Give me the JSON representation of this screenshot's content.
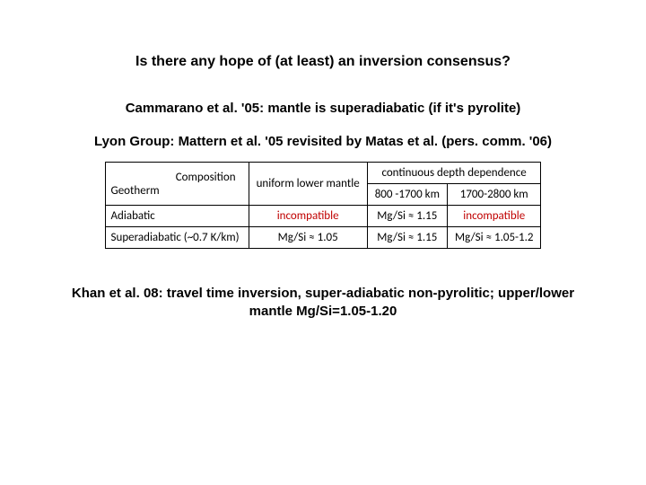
{
  "title": "Is there any hope of (at least) an inversion consensus?",
  "line1": "Cammarano et al. '05: mantle is superadiabatic (if it's pyrolite)",
  "line2": "Lyon Group: Mattern et al. '05 revisited by Matas et al. (pers. comm. '06)",
  "table": {
    "header": {
      "corner_top": "Composition",
      "corner_bottom": "Geotherm",
      "uniform": "uniform lower mantle",
      "continuous": "continuous depth dependence",
      "col_800": "800 -1700 km",
      "col_1700": "1700-2800 km"
    },
    "rows": {
      "adiabatic": {
        "label": "Adiabatic",
        "uniform": "incompatible",
        "c800": "Mg/Si ≈ 1.15",
        "c1700": "incompatible"
      },
      "superadiabatic": {
        "label": "Superadiabatic (~0.7 K/km)",
        "uniform": "Mg/Si ≈ 1.05",
        "c800": "Mg/Si ≈ 1.15",
        "c1700": "Mg/Si ≈ 1.05-1.2"
      }
    }
  },
  "lastline": "Khan et al. 08: travel time inversion, super-adiabatic non-pyrolitic; upper/lower mantle Mg/Si=1.05-1.20"
}
